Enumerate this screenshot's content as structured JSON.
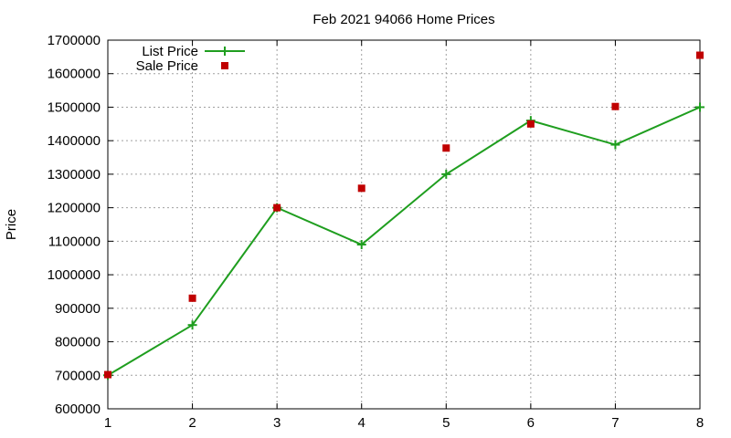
{
  "chart_data": {
    "type": "line",
    "title": "Feb 2021 94066 Home Prices",
    "xlabel": "",
    "ylabel": "Price",
    "x": [
      1,
      2,
      3,
      4,
      5,
      6,
      7,
      8
    ],
    "xlim": [
      1,
      8
    ],
    "ylim": [
      600000,
      1700000
    ],
    "yticks": [
      600000,
      700000,
      800000,
      900000,
      1000000,
      1100000,
      1200000,
      1300000,
      1400000,
      1500000,
      1600000,
      1700000
    ],
    "xticks": [
      1,
      2,
      3,
      4,
      5,
      6,
      7,
      8
    ],
    "grid": true,
    "legend_position": "top-left",
    "series": [
      {
        "name": "List Price",
        "style": "line-with-plus-markers",
        "color": "#1f9e1f",
        "values": [
          700000,
          850000,
          1200000,
          1090000,
          1300000,
          1460000,
          1388000,
          1500000
        ]
      },
      {
        "name": "Sale Price",
        "style": "square-markers",
        "color": "#c00000",
        "values": [
          702000,
          930000,
          1200000,
          1258000,
          1378000,
          1450000,
          1502000,
          1655000
        ]
      }
    ]
  }
}
